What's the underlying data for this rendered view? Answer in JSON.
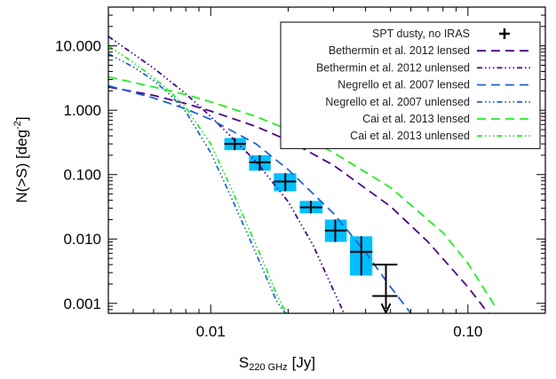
{
  "chart_data": {
    "type": "scatter",
    "xlabel": "S",
    "xlabel_subscript": "220 GHz",
    "xlabel_unit": "[Jy]",
    "ylabel": "N(>S) [deg",
    "ylabel_exponent": "-2",
    "ylabel_close": "]",
    "x_scale": "log",
    "y_scale": "log",
    "xlim": [
      0.004,
      0.2
    ],
    "ylim": [
      0.0007,
      40
    ],
    "x_ticks": [
      {
        "value": 0.01,
        "label": "0.01"
      },
      {
        "value": 0.1,
        "label": "0.10"
      }
    ],
    "y_ticks": [
      {
        "value": 0.001,
        "label": "0.001"
      },
      {
        "value": 0.01,
        "label": "0.010"
      },
      {
        "value": 0.1,
        "label": "0.100"
      },
      {
        "value": 1,
        "label": "1.000"
      },
      {
        "value": 10,
        "label": "10.000"
      }
    ],
    "legend_position": "top-right",
    "data_points": {
      "name": "SPT dusty, no IRAS",
      "box_color": "#00bfff",
      "points": [
        {
          "x": 0.0124,
          "y": 0.3,
          "xlo": 0.0113,
          "xhi": 0.0137,
          "ylo": 0.24,
          "yhi": 0.37
        },
        {
          "x": 0.0155,
          "y": 0.155,
          "xlo": 0.0141,
          "xhi": 0.0171,
          "ylo": 0.115,
          "yhi": 0.2
        },
        {
          "x": 0.0195,
          "y": 0.078,
          "xlo": 0.0176,
          "xhi": 0.0215,
          "ylo": 0.055,
          "yhi": 0.105
        },
        {
          "x": 0.0245,
          "y": 0.031,
          "xlo": 0.0222,
          "xhi": 0.0272,
          "ylo": 0.025,
          "yhi": 0.039
        },
        {
          "x": 0.0305,
          "y": 0.0135,
          "xlo": 0.0278,
          "xhi": 0.0338,
          "ylo": 0.009,
          "yhi": 0.02
        },
        {
          "x": 0.0385,
          "y": 0.0063,
          "xlo": 0.0348,
          "xhi": 0.0425,
          "ylo": 0.0027,
          "yhi": 0.011
        }
      ],
      "upper_limit": {
        "x": 0.048,
        "y": 0.0013,
        "xlo": 0.0425,
        "xhi": 0.0532,
        "yhi": 0.004,
        "arrow_to": 0.00072
      }
    },
    "series": [
      {
        "name": "Bethermin et al. 2012 lensed",
        "color": "#4b0082",
        "dash": "dashed",
        "x": [
          0.004,
          0.006,
          0.008,
          0.01,
          0.015,
          0.02,
          0.03,
          0.05,
          0.07,
          0.1,
          0.12
        ],
        "y": [
          2.3,
          1.7,
          1.27,
          0.97,
          0.56,
          0.34,
          0.14,
          0.032,
          0.009,
          0.0018,
          0.0007
        ]
      },
      {
        "name": "Bethermin et al. 2012 unlensed",
        "color": "#4b0082",
        "dash": "dashdot3",
        "x": [
          0.004,
          0.005,
          0.006,
          0.008,
          0.01,
          0.015,
          0.02,
          0.025,
          0.03,
          0.033
        ],
        "y": [
          14,
          7.5,
          4.5,
          1.8,
          0.8,
          0.16,
          0.038,
          0.008,
          0.0016,
          0.0007
        ]
      },
      {
        "name": "Negrello et al. 2007 lensed",
        "color": "#1e64d2",
        "dash": "dashed",
        "x": [
          0.004,
          0.006,
          0.008,
          0.01,
          0.015,
          0.02,
          0.03,
          0.04,
          0.05,
          0.06
        ],
        "y": [
          2.4,
          1.55,
          1.05,
          0.72,
          0.3,
          0.12,
          0.025,
          0.0062,
          0.0018,
          0.0007
        ]
      },
      {
        "name": "Negrello et al. 2007 unlensed",
        "color": "#1e64d2",
        "dash": "dashdot3",
        "x": [
          0.004,
          0.005,
          0.006,
          0.007,
          0.008,
          0.01,
          0.012,
          0.014,
          0.016,
          0.018,
          0.0195
        ],
        "y": [
          7.5,
          4.7,
          2.9,
          1.7,
          0.95,
          0.22,
          0.045,
          0.0112,
          0.0033,
          0.0011,
          0.0007
        ]
      },
      {
        "name": "Cai et al. 2013 lensed",
        "color": "#22ee22",
        "dash": "dashed",
        "x": [
          0.004,
          0.006,
          0.008,
          0.01,
          0.015,
          0.02,
          0.03,
          0.05,
          0.08,
          0.1,
          0.13
        ],
        "y": [
          3.3,
          2.3,
          1.75,
          1.35,
          0.8,
          0.5,
          0.22,
          0.063,
          0.0125,
          0.0042,
          0.0008
        ]
      },
      {
        "name": "Cai et al. 2013 unlensed",
        "color": "#22ee22",
        "dash": "dashdot3",
        "x": [
          0.004,
          0.005,
          0.006,
          0.007,
          0.008,
          0.01,
          0.012,
          0.014,
          0.016,
          0.018,
          0.0197
        ],
        "y": [
          10,
          5.5,
          3.2,
          1.9,
          1.1,
          0.3,
          0.062,
          0.015,
          0.0045,
          0.0014,
          0.0007
        ]
      }
    ]
  }
}
